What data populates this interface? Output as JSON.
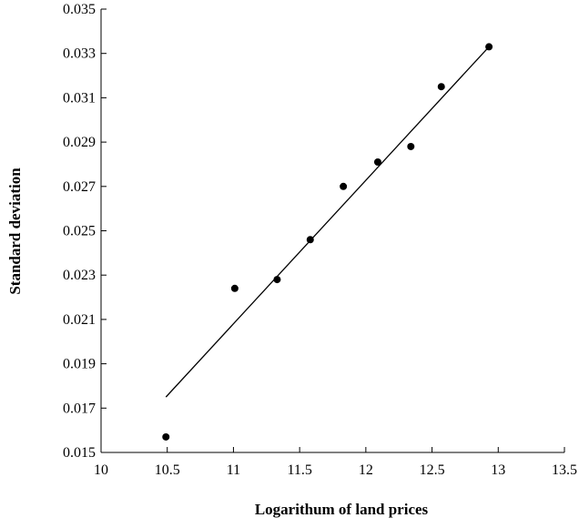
{
  "chart_data": {
    "type": "scatter",
    "title": "",
    "xlabel": "Logarithum of land prices",
    "ylabel": "Standard deviation",
    "xlim": [
      10,
      13.5
    ],
    "ylim": [
      0.015,
      0.035
    ],
    "x_ticks": [
      "10",
      "10.5",
      "11",
      "11.5",
      "12",
      "12.5",
      "13",
      "13.5"
    ],
    "y_ticks": [
      "0.015",
      "0.017",
      "0.019",
      "0.021",
      "0.023",
      "0.025",
      "0.027",
      "0.029",
      "0.031",
      "0.033",
      "0.035"
    ],
    "grid": false,
    "legend": "none",
    "points": [
      {
        "x": 10.49,
        "y": 0.0157
      },
      {
        "x": 11.01,
        "y": 0.0224
      },
      {
        "x": 11.33,
        "y": 0.0228
      },
      {
        "x": 11.58,
        "y": 0.0246
      },
      {
        "x": 11.83,
        "y": 0.027
      },
      {
        "x": 12.09,
        "y": 0.0281
      },
      {
        "x": 12.34,
        "y": 0.0288
      },
      {
        "x": 12.57,
        "y": 0.0315
      },
      {
        "x": 12.93,
        "y": 0.0333
      }
    ],
    "trendline": {
      "x": [
        10.49,
        12.93
      ],
      "y": [
        0.0175,
        0.0333
      ]
    },
    "marker_color": "#000000",
    "line_color": "#000000"
  }
}
